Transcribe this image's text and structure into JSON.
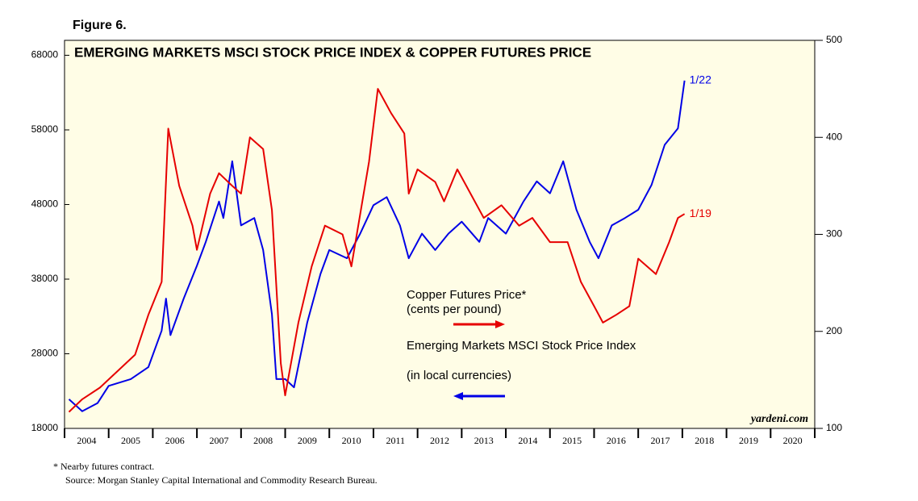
{
  "chart_data": {
    "type": "line",
    "figure_label": "Figure 6.",
    "title": "EMERGING MARKETS MSCI STOCK PRICE INDEX & COPPER FUTURES PRICE",
    "xlim": [
      2004,
      2021
    ],
    "x_boundaries": [
      2004,
      2005,
      2006,
      2007,
      2008,
      2009,
      2010,
      2011,
      2012,
      2013,
      2014,
      2015,
      2016,
      2017,
      2018,
      2019,
      2020,
      2021
    ],
    "xticks": [
      {
        "value": 2004.5,
        "label": "2004"
      },
      {
        "value": 2005.5,
        "label": "2005"
      },
      {
        "value": 2006.5,
        "label": "2006"
      },
      {
        "value": 2007.5,
        "label": "2007"
      },
      {
        "value": 2008.5,
        "label": "2008"
      },
      {
        "value": 2009.5,
        "label": "2009"
      },
      {
        "value": 2010.5,
        "label": "2010"
      },
      {
        "value": 2011.5,
        "label": "2011"
      },
      {
        "value": 2012.5,
        "label": "2012"
      },
      {
        "value": 2013.5,
        "label": "2013"
      },
      {
        "value": 2014.5,
        "label": "2014"
      },
      {
        "value": 2015.5,
        "label": "2015"
      },
      {
        "value": 2016.5,
        "label": "2016"
      },
      {
        "value": 2017.5,
        "label": "2017"
      },
      {
        "value": 2018.5,
        "label": "2018"
      },
      {
        "value": 2019.5,
        "label": "2019"
      },
      {
        "value": 2020.5,
        "label": "2020"
      }
    ],
    "ylim": [
      18000,
      70000
    ],
    "yticks": [
      18000,
      28000,
      38000,
      48000,
      58000,
      68000
    ],
    "y2lim": [
      100,
      500
    ],
    "y2ticks": [
      100,
      200,
      300,
      400,
      500
    ],
    "series": [
      {
        "name": "Emerging Markets MSCI Stock Price Index",
        "name_note": "(in local currencies)",
        "color": "#0000e6",
        "end_label": "1/22",
        "x": [
          2004.1,
          2004.4,
          2004.75,
          2005.0,
          2005.5,
          2005.9,
          2006.2,
          2006.3,
          2006.4,
          2006.7,
          2007.0,
          2007.2,
          2007.5,
          2007.6,
          2007.8,
          2007.9,
          2008.0,
          2008.3,
          2008.5,
          2008.7,
          2008.8,
          2009.0,
          2009.2,
          2009.5,
          2009.8,
          2010.0,
          2010.4,
          2010.7,
          2011.0,
          2011.3,
          2011.6,
          2011.8,
          2012.1,
          2012.4,
          2012.7,
          2013.0,
          2013.4,
          2013.6,
          2014.0,
          2014.4,
          2014.7,
          2015.0,
          2015.3,
          2015.6,
          2015.9,
          2016.1,
          2016.4,
          2016.7,
          2017.0,
          2017.3,
          2017.6,
          2017.9,
          2018.05
        ],
        "values": [
          21900,
          20300,
          21400,
          23700,
          24600,
          26200,
          31100,
          35400,
          30500,
          35400,
          39800,
          43000,
          48400,
          46200,
          53800,
          49500,
          45200,
          46200,
          41900,
          33300,
          24600,
          24600,
          23500,
          32200,
          38700,
          41900,
          40800,
          44100,
          47900,
          49000,
          45200,
          40800,
          44100,
          41900,
          44100,
          45700,
          43000,
          46200,
          44100,
          48400,
          51100,
          49500,
          53800,
          47300,
          43000,
          40800,
          45200,
          46200,
          47300,
          50600,
          56000,
          58200,
          64600
        ]
      },
      {
        "name": "Copper Futures Price*",
        "name_note": "(cents per pound)",
        "color": "#e60000",
        "axis": "y2",
        "end_label": "1/19",
        "x": [
          2004.1,
          2004.4,
          2004.8,
          2005.2,
          2005.6,
          2005.9,
          2006.2,
          2006.35,
          2006.6,
          2006.9,
          2007.0,
          2007.3,
          2007.5,
          2007.8,
          2008.0,
          2008.2,
          2008.5,
          2008.7,
          2008.9,
          2009.0,
          2009.3,
          2009.6,
          2009.9,
          2010.3,
          2010.5,
          2010.9,
          2011.1,
          2011.4,
          2011.7,
          2011.8,
          2012.0,
          2012.4,
          2012.6,
          2012.9,
          2013.2,
          2013.5,
          2013.9,
          2014.3,
          2014.6,
          2015.0,
          2015.4,
          2015.7,
          2016.0,
          2016.2,
          2016.5,
          2016.8,
          2017.0,
          2017.4,
          2017.7,
          2017.9,
          2018.05
        ],
        "values": [
          117,
          130,
          142,
          159,
          176,
          217,
          251,
          409,
          350,
          309,
          284,
          342,
          363,
          350,
          342,
          400,
          388,
          325,
          167,
          134,
          209,
          267,
          309,
          300,
          267,
          375,
          450,
          425,
          404,
          342,
          367,
          354,
          334,
          367,
          342,
          317,
          330,
          309,
          317,
          292,
          292,
          251,
          226,
          209,
          217,
          226,
          275,
          259,
          292,
          317,
          321
        ]
      }
    ],
    "source_mark": "yardeni.com",
    "footnotes": [
      "*  Nearby futures contract.",
      "Source: Morgan Stanley Capital International and Commodity Research Bureau."
    ]
  }
}
